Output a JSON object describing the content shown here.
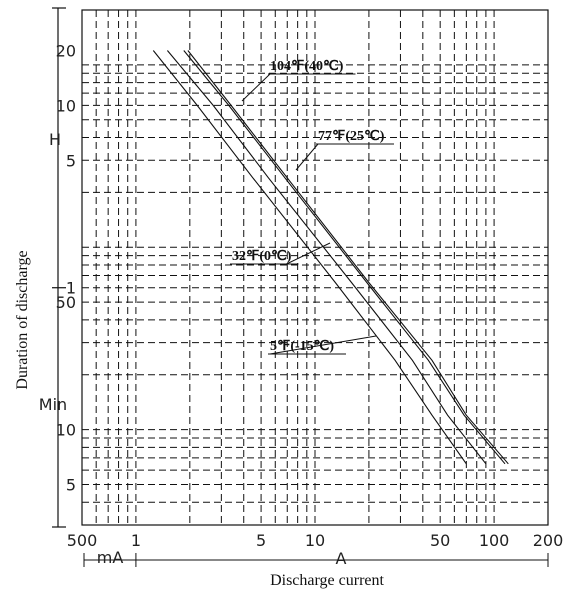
{
  "chart_data": {
    "type": "line",
    "xscale": "log",
    "yscale": "log",
    "xlabel": "Discharge current",
    "ylabel": "Duration of discharge",
    "x_unit_labels": {
      "ma": "mA",
      "a": "A"
    },
    "y_unit_labels": {
      "hours": "H",
      "minutes": "Min"
    },
    "x_ticks": [
      {
        "label": "500",
        "value_a": 0.5
      },
      {
        "label": "1",
        "value_a": 1
      },
      {
        "label": "5",
        "value_a": 5
      },
      {
        "label": "10",
        "value_a": 10
      },
      {
        "label": "50",
        "value_a": 50
      },
      {
        "label": "100",
        "value_a": 100
      },
      {
        "label": "200",
        "value_a": 200
      }
    ],
    "y_ticks": [
      {
        "label": "20",
        "value_min": 1200
      },
      {
        "label": "10",
        "value_min": 600
      },
      {
        "label": "5",
        "value_min": 300
      },
      {
        "label": "1",
        "value_min": 60
      },
      {
        "label": "50",
        "value_min": 50
      },
      {
        "label": "10",
        "value_min": 10
      },
      {
        "label": "5",
        "value_min": 5
      }
    ],
    "xlim_a": [
      0.5,
      200
    ],
    "ylim_min": [
      3,
      2000
    ],
    "grid": true,
    "series": [
      {
        "name": "104℉(40℃)",
        "x_a": [
          1.95,
          3.4,
          7,
          20,
          45,
          70,
          120
        ],
        "y_min": [
          1200,
          600,
          240,
          64,
          24,
          12,
          6.5
        ]
      },
      {
        "name": "77℉(25℃)",
        "x_a": [
          1.85,
          3.3,
          6.8,
          19.5,
          43,
          68,
          115
        ],
        "y_min": [
          1200,
          600,
          240,
          64,
          24,
          12,
          6.5
        ]
      },
      {
        "name": "32℉(0℃)",
        "x_a": [
          1.5,
          2.7,
          5.5,
          16,
          35,
          55,
          90
        ],
        "y_min": [
          1200,
          600,
          240,
          64,
          24,
          12,
          6.5
        ]
      },
      {
        "name": "5℉(-15℃)",
        "x_a": [
          1.25,
          2.2,
          4.5,
          13,
          28,
          45,
          70
        ],
        "y_min": [
          1200,
          600,
          240,
          64,
          24,
          12,
          6.5
        ]
      }
    ],
    "annotations": [
      {
        "text": "104℉(40℃)",
        "x_a": 3.6,
        "y_min": 560
      },
      {
        "text": "77℉(25℃)",
        "x_a": 7.0,
        "y_min": 240
      },
      {
        "text": "32℉(0℃)",
        "x_a": 6.2,
        "y_min": 106
      },
      {
        "text": "5℉(-15℃)",
        "x_a": 27,
        "y_min": 20
      }
    ]
  }
}
